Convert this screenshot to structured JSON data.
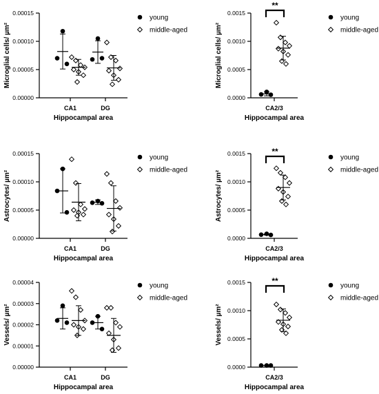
{
  "chart_data": [
    {
      "type": "scatter",
      "ylabel": "Microglial cells/ µm²",
      "xlabel": "Hippocampal area",
      "categories": [
        "CA1",
        "DG"
      ],
      "ylim": [
        0,
        0.00015
      ],
      "yticks": [
        "0.00000",
        "0.00005",
        "0.00010",
        "0.00015"
      ],
      "yticks_values": [
        0,
        5e-05,
        0.0001,
        0.00015
      ],
      "series": [
        {
          "name": "young",
          "marker": "filled-circle",
          "points": [
            [
              0,
              0.000118
            ],
            [
              0,
              7e-05
            ],
            [
              0,
              6e-05
            ],
            [
              1,
              0.000105
            ],
            [
              1,
              6.8e-05
            ],
            [
              1,
              7e-05
            ]
          ],
          "mean": [
            8.2e-05,
            8.1e-05
          ],
          "sd": [
            3.1e-05,
            2e-05
          ]
        },
        {
          "name": "middle-aged",
          "marker": "open-diamond",
          "points": [
            [
              0,
              7.2e-05
            ],
            [
              0,
              6.6e-05
            ],
            [
              0,
              5.8e-05
            ],
            [
              0,
              5.4e-05
            ],
            [
              0,
              5e-05
            ],
            [
              0,
              4.6e-05
            ],
            [
              0,
              4e-05
            ],
            [
              0,
              2.8e-05
            ],
            [
              1,
              9.8e-05
            ],
            [
              1,
              7.2e-05
            ],
            [
              1,
              6.6e-05
            ],
            [
              1,
              5.2e-05
            ],
            [
              1,
              4.8e-05
            ],
            [
              1,
              4e-05
            ],
            [
              1,
              3.2e-05
            ],
            [
              1,
              2.4e-05
            ]
          ],
          "mean": [
            5.4e-05,
            5.3e-05
          ],
          "sd": [
            1.4e-05,
            2.2e-05
          ]
        }
      ]
    },
    {
      "type": "scatter",
      "ylabel": "Microglial cells/ µm²",
      "xlabel": "Hippocampal area",
      "categories": [
        "CA2/3"
      ],
      "ylim": [
        0,
        0.0015
      ],
      "yticks": [
        "0.0000",
        "0.0005",
        "0.0010",
        "0.0015"
      ],
      "yticks_values": [
        0,
        0.0005,
        0.001,
        0.0015
      ],
      "significance": "**",
      "series": [
        {
          "name": "young",
          "marker": "filled-circle",
          "points": [
            [
              0,
              0.000105
            ],
            [
              0,
              6e-05
            ],
            [
              0,
              5.5e-05
            ]
          ],
          "mean": [
            7e-05
          ],
          "sd": [
            3.5e-05
          ]
        },
        {
          "name": "middle-aged",
          "marker": "open-diamond",
          "points": [
            [
              0,
              0.00133
            ],
            [
              0,
              0.00107
            ],
            [
              0,
              0.00098
            ],
            [
              0,
              0.00092
            ],
            [
              0,
              0.00087
            ],
            [
              0,
              0.00082
            ],
            [
              0,
              0.00076
            ],
            [
              0,
              0.00065
            ],
            [
              0,
              0.0006
            ]
          ],
          "mean": [
            0.00088
          ],
          "sd": [
            0.00021
          ]
        }
      ]
    },
    {
      "type": "scatter",
      "ylabel": "Astrocytes/ µm²",
      "xlabel": "Hippocampal area",
      "categories": [
        "CA1",
        "DG"
      ],
      "ylim": [
        0,
        0.00015
      ],
      "yticks": [
        "0.00000",
        "0.00005",
        "0.00010",
        "0.00015"
      ],
      "yticks_values": [
        0,
        5e-05,
        0.0001,
        0.00015
      ],
      "series": [
        {
          "name": "young",
          "marker": "filled-circle",
          "points": [
            [
              0,
              0.000123
            ],
            [
              0,
              8.4e-05
            ],
            [
              0,
              4.6e-05
            ],
            [
              1,
              6.6e-05
            ],
            [
              1,
              6.3e-05
            ],
            [
              1,
              6.2e-05
            ]
          ],
          "mean": [
            8.4e-05,
            6.4e-05
          ],
          "sd": [
            3.9e-05,
            4e-06
          ]
        },
        {
          "name": "middle-aged",
          "marker": "open-diamond",
          "points": [
            [
              0,
              0.00014
            ],
            [
              0,
              9.8e-05
            ],
            [
              0,
              6e-05
            ],
            [
              0,
              5.2e-05
            ],
            [
              0,
              5e-05
            ],
            [
              0,
              4.6e-05
            ],
            [
              0,
              4.2e-05
            ],
            [
              0,
              4e-05
            ],
            [
              1,
              0.000114
            ],
            [
              1,
              9.8e-05
            ],
            [
              1,
              6.6e-05
            ],
            [
              1,
              5.4e-05
            ],
            [
              1,
              4.2e-05
            ],
            [
              1,
              3.4e-05
            ],
            [
              1,
              2.2e-05
            ],
            [
              1,
              1.2e-05
            ]
          ],
          "mean": [
            6.4e-05,
            5.3e-05
          ],
          "sd": [
            3.3e-05,
            4e-05
          ]
        }
      ]
    },
    {
      "type": "scatter",
      "ylabel": "Astrocytes/ µm²",
      "xlabel": "Hippocampal area",
      "categories": [
        "CA2/3"
      ],
      "ylim": [
        0,
        0.0015
      ],
      "yticks": [
        "0.0000",
        "0.0005",
        "0.0010",
        "0.0015"
      ],
      "yticks_values": [
        0,
        0.0005,
        0.001,
        0.0015
      ],
      "significance": "**",
      "series": [
        {
          "name": "young",
          "marker": "filled-circle",
          "points": [
            [
              0,
              8e-05
            ],
            [
              0,
              6.5e-05
            ],
            [
              0,
              6e-05
            ]
          ],
          "mean": [
            6.8e-05
          ],
          "sd": [
            1e-05
          ]
        },
        {
          "name": "middle-aged",
          "marker": "open-diamond",
          "points": [
            [
              0,
              0.00124
            ],
            [
              0,
              0.00116
            ],
            [
              0,
              0.00108
            ],
            [
              0,
              0.00098
            ],
            [
              0,
              0.00088
            ],
            [
              0,
              0.00082
            ],
            [
              0,
              0.00074
            ],
            [
              0,
              0.00066
            ],
            [
              0,
              0.0006
            ]
          ],
          "mean": [
            0.0009
          ],
          "sd": [
            0.00022
          ]
        }
      ]
    },
    {
      "type": "scatter",
      "ylabel": "Vessels/ µm²",
      "xlabel": "Hippocampal area",
      "categories": [
        "CA1",
        "DG"
      ],
      "ylim": [
        0,
        4e-05
      ],
      "yticks": [
        "0.00000",
        "0.00001",
        "0.00002",
        "0.00003",
        "0.00004"
      ],
      "yticks_values": [
        0,
        1e-05,
        2e-05,
        3e-05,
        4e-05
      ],
      "series": [
        {
          "name": "young",
          "marker": "filled-circle",
          "points": [
            [
              0,
              2.9e-05
            ],
            [
              0,
              2.2e-05
            ],
            [
              0,
              2.1e-05
            ],
            [
              1,
              2.4e-05
            ],
            [
              1,
              2.1e-05
            ],
            [
              1,
              1.8e-05
            ]
          ],
          "mean": [
            2.3e-05,
            2.1e-05
          ],
          "sd": [
            5e-06,
            3e-06
          ]
        },
        {
          "name": "middle-aged",
          "marker": "open-diamond",
          "points": [
            [
              0,
              3.6e-05
            ],
            [
              0,
              3.3e-05
            ],
            [
              0,
              2.7e-05
            ],
            [
              0,
              2.2e-05
            ],
            [
              0,
              2e-05
            ],
            [
              0,
              1.9e-05
            ],
            [
              0,
              1.8e-05
            ],
            [
              0,
              1.5e-05
            ],
            [
              1,
              2.8e-05
            ],
            [
              1,
              2.8e-05
            ],
            [
              1,
              2.1e-05
            ],
            [
              1,
              1.9e-05
            ],
            [
              1,
              1.6e-05
            ],
            [
              1,
              1.3e-05
            ],
            [
              1,
              9e-06
            ],
            [
              1,
              8e-06
            ]
          ],
          "mean": [
            2.2e-05,
            1.5e-05
          ],
          "sd": [
            7e-06,
            8e-06
          ]
        }
      ]
    },
    {
      "type": "scatter",
      "ylabel": "Vessels/ µm²",
      "xlabel": "Hippocampal area",
      "categories": [
        "CA2/3"
      ],
      "ylim": [
        0,
        0.0015
      ],
      "yticks": [
        "0.0000",
        "0.0005",
        "0.0010",
        "0.0015"
      ],
      "yticks_values": [
        0,
        0.0005,
        0.001,
        0.0015
      ],
      "significance": "**",
      "series": [
        {
          "name": "young",
          "marker": "filled-circle",
          "points": [
            [
              0,
              3e-05
            ],
            [
              0,
              3e-05
            ],
            [
              0,
              3e-05
            ]
          ],
          "mean": [
            3e-05
          ],
          "sd": [
            3e-06
          ]
        },
        {
          "name": "middle-aged",
          "marker": "open-diamond",
          "points": [
            [
              0,
              0.00111
            ],
            [
              0,
              0.00102
            ],
            [
              0,
              0.00096
            ],
            [
              0,
              0.00088
            ],
            [
              0,
              0.0008
            ],
            [
              0,
              0.00076
            ],
            [
              0,
              0.00072
            ],
            [
              0,
              0.00066
            ],
            [
              0,
              0.0006
            ]
          ],
          "mean": [
            0.00083
          ],
          "sd": [
            0.0002
          ]
        }
      ]
    }
  ]
}
